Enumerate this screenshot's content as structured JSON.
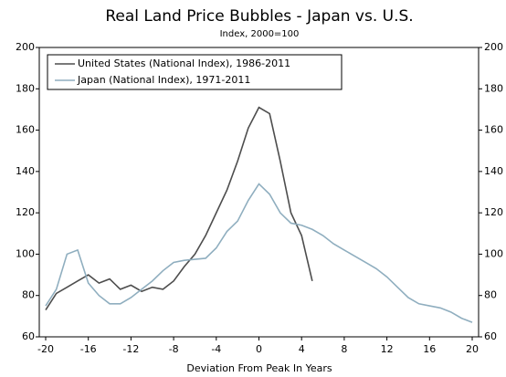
{
  "chart_data": {
    "type": "line",
    "title": "Real Land Price Bubbles - Japan vs. U.S.",
    "subtitle": "Index, 2000=100",
    "xlabel": "Deviation From Peak In Years",
    "xlim": [
      -20.6,
      20.6
    ],
    "xticks": [
      -20,
      -16,
      -12,
      -8,
      -4,
      0,
      4,
      8,
      12,
      16,
      20
    ],
    "ylim": [
      60,
      200
    ],
    "yticks": [
      60,
      80,
      100,
      120,
      140,
      160,
      180,
      200
    ],
    "y2lim": [
      60,
      200
    ],
    "y2ticks": [
      60,
      80,
      100,
      120,
      140,
      160,
      180,
      200
    ],
    "legend": "upper left",
    "series": [
      {
        "name": "United States (National Index), 1986-2011",
        "color": "#4d4d4d",
        "x": [
          -20,
          -19,
          -18,
          -17,
          -16,
          -15,
          -14,
          -13,
          -12,
          -11,
          -10,
          -9,
          -8,
          -7,
          -6,
          -5,
          -4,
          -3,
          -2,
          -1,
          0,
          1,
          2,
          3,
          4,
          5
        ],
        "values": [
          73,
          81,
          84,
          87,
          90,
          86,
          88,
          83,
          85,
          82,
          84,
          83,
          87,
          94,
          100,
          109,
          120,
          131,
          145,
          161,
          171,
          168,
          145,
          120,
          109,
          87
        ]
      },
      {
        "name": "Japan (National Index), 1971-2011",
        "color": "#8faebf",
        "x": [
          -20,
          -19,
          -18,
          -17,
          -16,
          -15,
          -14,
          -13,
          -12,
          -11,
          -10,
          -9,
          -8,
          -7,
          -6,
          -5,
          -4,
          -3,
          -2,
          -1,
          0,
          1,
          2,
          3,
          4,
          5,
          6,
          7,
          8,
          9,
          10,
          11,
          12,
          13,
          14,
          15,
          16,
          17,
          18,
          19,
          20
        ],
        "values": [
          75,
          83,
          100,
          102,
          86,
          80,
          76,
          76,
          79,
          83,
          87,
          92,
          96,
          97,
          97.5,
          98,
          103,
          111,
          116,
          126,
          134,
          129,
          120,
          115,
          114,
          112,
          109,
          105,
          102,
          99,
          96,
          93,
          89,
          84,
          79,
          76,
          75,
          74,
          72,
          69,
          67
        ]
      }
    ]
  }
}
